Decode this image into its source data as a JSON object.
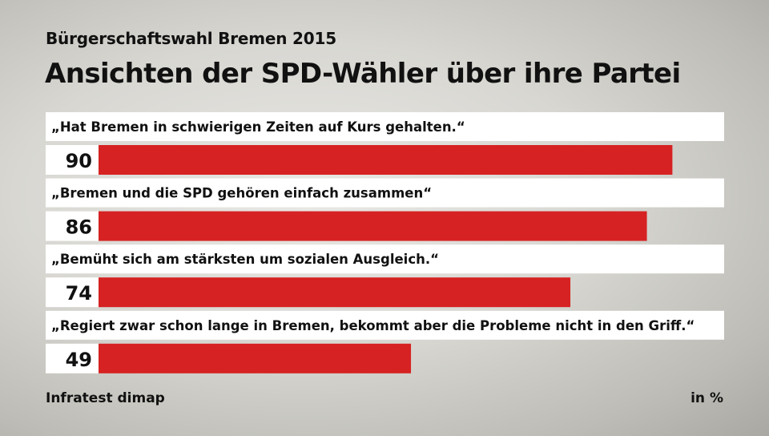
{
  "header": {
    "subtitle": "Bürgerschaftswahl Bremen 2015",
    "title": "Ansichten der SPD-Wähler über ihre Partei"
  },
  "footer": {
    "source": "Infratest dimap",
    "unit": "in %"
  },
  "colors": {
    "bar": "#d62222",
    "label_bg": "#ffffff"
  },
  "chart_data": {
    "type": "bar",
    "orientation": "horizontal",
    "categories": [
      "„Hat Bremen in schwierigen Zeiten auf Kurs gehalten.“",
      "„Bremen und die SPD gehören einfach zusammen“",
      "„Bemüht sich am stärksten um sozialen Ausgleich.“",
      "„Regiert zwar schon lange in Bremen, bekommt aber die Probleme nicht in den Griff.“"
    ],
    "values": [
      90,
      86,
      74,
      49
    ],
    "unit": "in %",
    "xlim": [
      0,
      100
    ],
    "grid": false,
    "legend": "none"
  }
}
